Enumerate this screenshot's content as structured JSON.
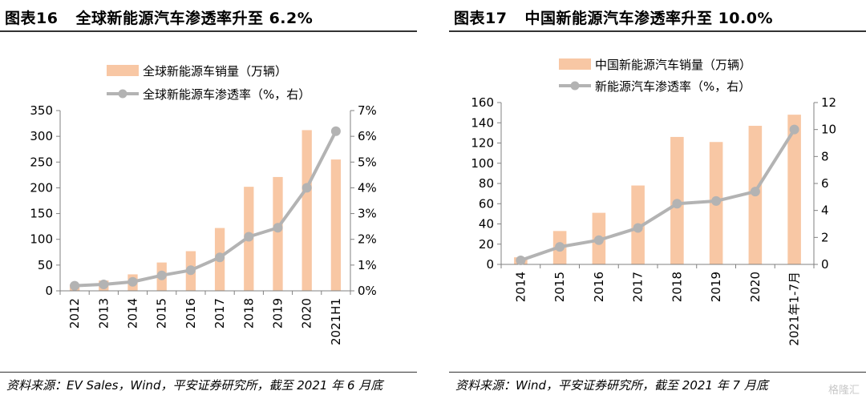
{
  "panels": [
    {
      "title_num": "图表16",
      "title_text": "全球新能源汽车渗透率升至 6.2%",
      "source": "资料来源：EV Sales，Wind，平安证券研究所，截至 2021 年 6 月底"
    },
    {
      "title_num": "图表17",
      "title_text": "中国新能源汽车渗透率升至 10.0%",
      "source": "资料来源：Wind，平安证券研究所，截至 2021 年 7 月底"
    }
  ],
  "watermark": "格隆汇",
  "colors": {
    "bar": "#f8c7a4",
    "line": "#b3b3b3",
    "axis": "#808080",
    "text": "#000000"
  },
  "chart_data": [
    {
      "type": "bar+line",
      "categories": [
        "2012",
        "2013",
        "2014",
        "2015",
        "2016",
        "2017",
        "2018",
        "2019",
        "2020",
        "2021H1"
      ],
      "series": [
        {
          "name": "全球新能源车销量（万辆）",
          "type": "bar",
          "axis": "left",
          "values": [
            12,
            20,
            32,
            55,
            77,
            122,
            202,
            221,
            312,
            255
          ]
        },
        {
          "name": "全球新能源车渗透率（%，右）",
          "type": "line",
          "axis": "right",
          "values": [
            0.2,
            0.25,
            0.35,
            0.6,
            0.8,
            1.3,
            2.1,
            2.45,
            4.0,
            6.2
          ]
        }
      ],
      "y_left": {
        "min": 0,
        "max": 350,
        "step": 50,
        "ticks": [
          "0",
          "50",
          "100",
          "150",
          "200",
          "250",
          "300",
          "350"
        ]
      },
      "y_right": {
        "min": 0,
        "max": 7,
        "step": 1,
        "ticks": [
          "0%",
          "1%",
          "2%",
          "3%",
          "4%",
          "5%",
          "6%",
          "7%"
        ]
      },
      "legend": "top",
      "grid": false
    },
    {
      "type": "bar+line",
      "categories": [
        "2014",
        "2015",
        "2016",
        "2017",
        "2018",
        "2019",
        "2020",
        "2021年1-7月"
      ],
      "series": [
        {
          "name": "中国新能源汽车销量（万辆）",
          "type": "bar",
          "axis": "left",
          "values": [
            7,
            33,
            51,
            78,
            126,
            121,
            137,
            148
          ]
        },
        {
          "name": "新能源汽车渗透率（%，右）",
          "type": "line",
          "axis": "right",
          "values": [
            0.3,
            1.3,
            1.8,
            2.7,
            4.5,
            4.7,
            5.4,
            10.0
          ]
        }
      ],
      "y_left": {
        "min": 0,
        "max": 160,
        "step": 20,
        "ticks": [
          "0",
          "20",
          "40",
          "60",
          "80",
          "100",
          "120",
          "140",
          "160"
        ]
      },
      "y_right": {
        "min": 0,
        "max": 12,
        "step": 2,
        "ticks": [
          "0",
          "2",
          "4",
          "6",
          "8",
          "10",
          "12"
        ]
      },
      "legend": "top",
      "grid": false
    }
  ]
}
